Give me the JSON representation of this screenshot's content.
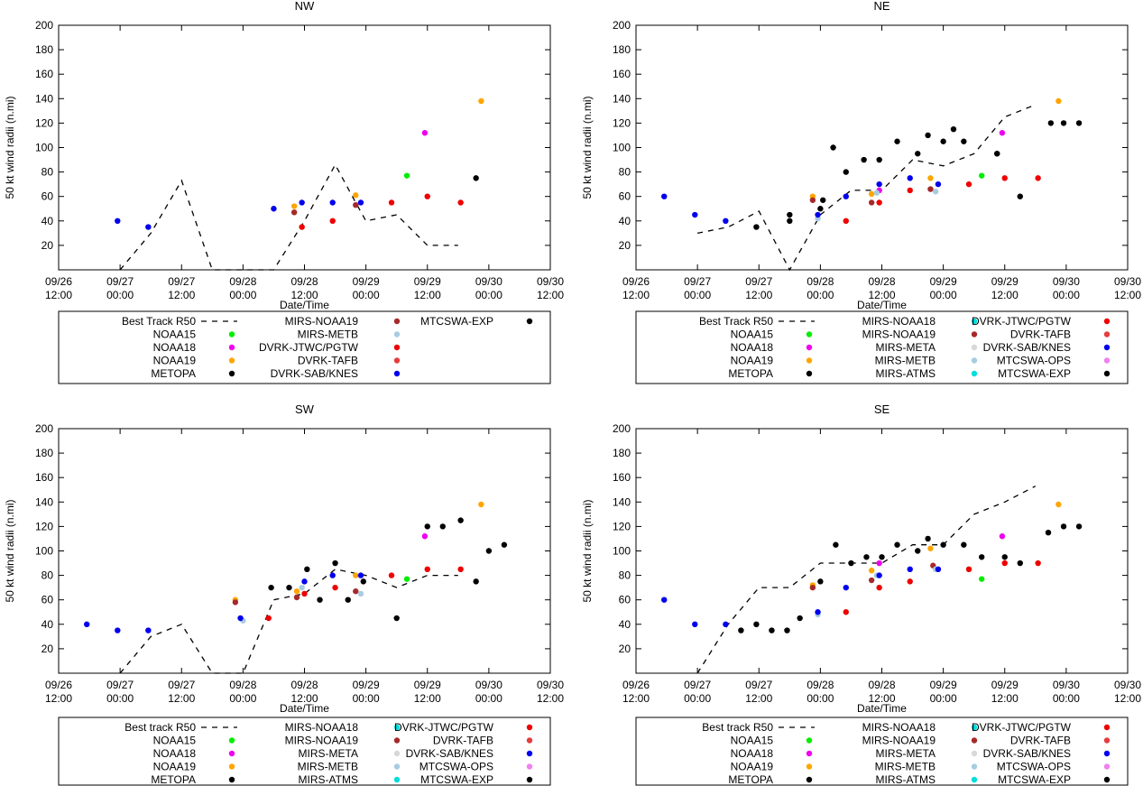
{
  "colors": {
    "black": "#000000",
    "NOAA15": "#00ee00",
    "NOAA18": "#ee00ee",
    "NOAA19": "#ffa500",
    "METOPA": "#000000",
    "MIRS-NOAA18": "#00dddd",
    "MIRS-NOAA19": "#a52a2a",
    "MIRS-META": "#d8d8d8",
    "MIRS-METB": "#a8cce0",
    "MIRS-ATMS": "#00dddd",
    "DVRK-JTWC/PGTW": "#ee0000",
    "DVRK-TAFB": "#e53c3c",
    "DVRK-SAB/KNES": "#0000ee",
    "MTCSWA-OPS": "#ee82ee",
    "MTCSWA-EXP": "#000000"
  },
  "chart_data": [
    {
      "id": "nw",
      "type": "scatter",
      "title": "NW",
      "xlabel": "Date/Time",
      "ylabel": "50 kt wind radii (n.mi)",
      "xlim": [
        0,
        96
      ],
      "ylim": [
        0,
        200
      ],
      "yticks": [
        20,
        40,
        60,
        80,
        100,
        120,
        140,
        160,
        180,
        200
      ],
      "xticks": [
        {
          "x": 0,
          "l1": "09/26",
          "l2": "12:00"
        },
        {
          "x": 12,
          "l1": "09/27",
          "l2": "00:00"
        },
        {
          "x": 24,
          "l1": "09/27",
          "l2": "12:00"
        },
        {
          "x": 36,
          "l1": "09/28",
          "l2": "00:00"
        },
        {
          "x": 48,
          "l1": "09/28",
          "l2": "12:00"
        },
        {
          "x": 60,
          "l1": "09/29",
          "l2": "00:00"
        },
        {
          "x": 72,
          "l1": "09/29",
          "l2": "12:00"
        },
        {
          "x": 84,
          "l1": "09/30",
          "l2": "00:00"
        },
        {
          "x": 96,
          "l1": "09/30",
          "l2": "12:00"
        }
      ],
      "best_track": {
        "name": "Best Track R50",
        "x": [
          12,
          18,
          24,
          30,
          36,
          42,
          48,
          54,
          58,
          60,
          66,
          72,
          78
        ],
        "y": [
          0,
          30,
          73,
          0,
          0,
          0,
          40,
          86,
          55,
          40,
          45,
          20,
          20
        ]
      },
      "series": [
        {
          "name": "NOAA15",
          "x": [
            68
          ],
          "y": [
            77
          ]
        },
        {
          "name": "NOAA18",
          "x": [
            71.5
          ],
          "y": [
            112
          ]
        },
        {
          "name": "NOAA19",
          "x": [
            46,
            58,
            82.5
          ],
          "y": [
            52,
            61,
            138
          ]
        },
        {
          "name": "METOPA",
          "x": [],
          "y": []
        },
        {
          "name": "MIRS-NOAA19",
          "x": [
            46,
            58
          ],
          "y": [
            47,
            53
          ]
        },
        {
          "name": "MIRS-METB",
          "x": [],
          "y": []
        },
        {
          "name": "DVRK-JTWC/PGTW",
          "x": [
            47.5,
            53.5,
            65,
            72,
            78.5
          ],
          "y": [
            35,
            40,
            55,
            60,
            55
          ]
        },
        {
          "name": "DVRK-TAFB",
          "x": [],
          "y": []
        },
        {
          "name": "DVRK-SAB/KNES",
          "x": [
            11.5,
            17.5,
            42,
            47.5,
            53.5,
            59
          ],
          "y": [
            40,
            35,
            50,
            55,
            55,
            55
          ]
        },
        {
          "name": "MTCSWA-EXP",
          "x": [
            81.5
          ],
          "y": [
            75
          ]
        }
      ],
      "legend": {
        "best_track_label": "Best Track R50",
        "columns": [
          [
            "Best Track R50",
            "NOAA15",
            "NOAA18",
            "NOAA19",
            "METOPA"
          ],
          [
            "MIRS-NOAA19",
            "MIRS-METB",
            "DVRK-JTWC/PGTW",
            "DVRK-TAFB",
            "DVRK-SAB/KNES"
          ],
          [
            "MTCSWA-EXP"
          ]
        ]
      }
    },
    {
      "id": "ne",
      "type": "scatter",
      "title": "NE",
      "xlabel": "Date/Time",
      "ylabel": "50 kt wind radii (n.mi)",
      "xlim": [
        0,
        96
      ],
      "ylim": [
        0,
        200
      ],
      "yticks": [
        20,
        40,
        60,
        80,
        100,
        120,
        140,
        160,
        180,
        200
      ],
      "xticks": [
        {
          "x": 0,
          "l1": "09/26",
          "l2": "12:00"
        },
        {
          "x": 12,
          "l1": "09/27",
          "l2": "00:00"
        },
        {
          "x": 24,
          "l1": "09/27",
          "l2": "12:00"
        },
        {
          "x": 36,
          "l1": "09/28",
          "l2": "00:00"
        },
        {
          "x": 48,
          "l1": "09/28",
          "l2": "12:00"
        },
        {
          "x": 60,
          "l1": "09/29",
          "l2": "00:00"
        },
        {
          "x": 72,
          "l1": "09/29",
          "l2": "12:00"
        },
        {
          "x": 84,
          "l1": "09/30",
          "l2": "00:00"
        },
        {
          "x": 96,
          "l1": "09/30",
          "l2": "12:00"
        }
      ],
      "best_track": {
        "name": "Best Track R50",
        "x": [
          12,
          18,
          24,
          30,
          36,
          42,
          48,
          54,
          60,
          66,
          72,
          78
        ],
        "y": [
          30,
          35,
          48,
          0,
          45,
          65,
          65,
          90,
          85,
          95,
          125,
          135
        ]
      },
      "series": [
        {
          "name": "NOAA15",
          "x": [
            67.5
          ],
          "y": [
            77
          ]
        },
        {
          "name": "NOAA18",
          "x": [
            47.5,
            71.5
          ],
          "y": [
            65,
            112
          ]
        },
        {
          "name": "NOAA19",
          "x": [
            34.5,
            46,
            57.5,
            82.5
          ],
          "y": [
            60,
            62,
            75,
            138
          ]
        },
        {
          "name": "METOPA",
          "x": [
            23.5,
            30,
            36.5,
            38.5,
            41,
            44.5,
            47.5,
            51,
            55,
            57,
            60,
            62,
            64,
            70.5,
            75,
            81,
            83.5,
            86.5
          ],
          "y": [
            35,
            40,
            57,
            100,
            80,
            90,
            90,
            105,
            95,
            110,
            105,
            115,
            105,
            95,
            60,
            120,
            120,
            120
          ]
        },
        {
          "name": "MIRS-NOAA18",
          "x": [],
          "y": []
        },
        {
          "name": "MIRS-NOAA19",
          "x": [
            34.5,
            46,
            57.5
          ],
          "y": [
            57,
            55,
            66
          ]
        },
        {
          "name": "MIRS-META",
          "x": [],
          "y": []
        },
        {
          "name": "MIRS-METB",
          "x": [
            35.5,
            47,
            58.5
          ],
          "y": [
            42,
            63,
            64
          ]
        },
        {
          "name": "MIRS-ATMS",
          "x": [],
          "y": []
        },
        {
          "name": "DVRK-JTWC/PGTW",
          "x": [
            41,
            47.5,
            53.5,
            65,
            72,
            78.5
          ],
          "y": [
            40,
            55,
            65,
            70,
            75,
            75
          ]
        },
        {
          "name": "DVRK-TAFB",
          "x": [],
          "y": []
        },
        {
          "name": "DVRK-SAB/KNES",
          "x": [
            5.5,
            11.5,
            17.5,
            35.5,
            41,
            47.5,
            53.5,
            59
          ],
          "y": [
            60,
            45,
            40,
            45,
            60,
            70,
            75,
            70
          ]
        },
        {
          "name": "MTCSWA-OPS",
          "x": [],
          "y": []
        },
        {
          "name": "MTCSWA-EXP",
          "x": [
            30,
            36,
            70.5
          ],
          "y": [
            45,
            50,
            95
          ]
        }
      ],
      "legend": {
        "columns": [
          [
            "Best Track R50",
            "NOAA15",
            "NOAA18",
            "NOAA19",
            "METOPA"
          ],
          [
            "MIRS-NOAA18",
            "MIRS-NOAA19",
            "MIRS-META",
            "MIRS-METB",
            "MIRS-ATMS"
          ],
          [
            "DVRK-JTWC/PGTW",
            "DVRK-TAFB",
            "DVRK-SAB/KNES",
            "MTCSWA-OPS",
            "MTCSWA-EXP"
          ]
        ]
      }
    },
    {
      "id": "sw",
      "type": "scatter",
      "title": "SW",
      "xlabel": "Date/Time",
      "ylabel": "50 kt wind radii (n.mi)",
      "xlim": [
        0,
        96
      ],
      "ylim": [
        0,
        200
      ],
      "yticks": [
        20,
        40,
        60,
        80,
        100,
        120,
        140,
        160,
        180,
        200
      ],
      "xticks": [
        {
          "x": 0,
          "l1": "09/26",
          "l2": "12:00"
        },
        {
          "x": 12,
          "l1": "09/27",
          "l2": "00:00"
        },
        {
          "x": 24,
          "l1": "09/27",
          "l2": "12:00"
        },
        {
          "x": 36,
          "l1": "09/28",
          "l2": "00:00"
        },
        {
          "x": 48,
          "l1": "09/28",
          "l2": "12:00"
        },
        {
          "x": 60,
          "l1": "09/29",
          "l2": "00:00"
        },
        {
          "x": 72,
          "l1": "09/29",
          "l2": "12:00"
        },
        {
          "x": 84,
          "l1": "09/30",
          "l2": "00:00"
        },
        {
          "x": 96,
          "l1": "09/30",
          "l2": "12:00"
        }
      ],
      "best_track": {
        "name": "Best track R50",
        "x": [
          12,
          18,
          24,
          30,
          36,
          42,
          48,
          54,
          60,
          66,
          72,
          78
        ],
        "y": [
          0,
          30,
          40,
          0,
          0,
          60,
          65,
          85,
          80,
          70,
          80,
          80
        ]
      },
      "series": [
        {
          "name": "NOAA15",
          "x": [
            68
          ],
          "y": [
            77
          ]
        },
        {
          "name": "NOAA18",
          "x": [
            71.5
          ],
          "y": [
            112
          ]
        },
        {
          "name": "NOAA19",
          "x": [
            34.5,
            46.5,
            58,
            82.5
          ],
          "y": [
            60,
            67,
            80,
            138
          ]
        },
        {
          "name": "METOPA",
          "x": [
            41.5,
            45,
            48.5,
            51,
            54,
            56.5,
            59.5,
            66,
            72,
            75,
            78.5,
            81.5,
            84,
            87
          ],
          "y": [
            70,
            70,
            85,
            60,
            90,
            60,
            75,
            45,
            120,
            120,
            125,
            75,
            100,
            105
          ]
        },
        {
          "name": "MIRS-NOAA18",
          "x": [],
          "y": []
        },
        {
          "name": "MIRS-NOAA19",
          "x": [
            34.5,
            46.5,
            58
          ],
          "y": [
            58,
            62,
            67
          ]
        },
        {
          "name": "MIRS-META",
          "x": [],
          "y": []
        },
        {
          "name": "MIRS-METB",
          "x": [
            36,
            47.5,
            59
          ],
          "y": [
            43,
            70,
            65
          ]
        },
        {
          "name": "MIRS-ATMS",
          "x": [],
          "y": []
        },
        {
          "name": "DVRK-JTWC/PGTW",
          "x": [
            41,
            48,
            54,
            65,
            72,
            78.5
          ],
          "y": [
            45,
            65,
            70,
            80,
            85,
            85
          ]
        },
        {
          "name": "DVRK-TAFB",
          "x": [],
          "y": []
        },
        {
          "name": "DVRK-SAB/KNES",
          "x": [
            5.5,
            11.5,
            17.5,
            35.5,
            48,
            53.5,
            59
          ],
          "y": [
            40,
            35,
            35,
            45,
            75,
            80,
            80
          ]
        },
        {
          "name": "MTCSWA-OPS",
          "x": [],
          "y": []
        },
        {
          "name": "MTCSWA-EXP",
          "x": [],
          "y": []
        }
      ],
      "legend": {
        "columns": [
          [
            "Best track R50",
            "NOAA15",
            "NOAA18",
            "NOAA19",
            "METOPA"
          ],
          [
            "MIRS-NOAA18",
            "MIRS-NOAA19",
            "MIRS-META",
            "MIRS-METB",
            "MIRS-ATMS"
          ],
          [
            "DVRK-JTWC/PGTW",
            "DVRK-TAFB",
            "DVRK-SAB/KNES",
            "MTCSWA-OPS",
            "MTCSWA-EXP"
          ]
        ]
      }
    },
    {
      "id": "se",
      "type": "scatter",
      "title": "SE",
      "xlabel": "Date/Time",
      "ylabel": "50 kt wind radii (n.mi)",
      "xlim": [
        0,
        96
      ],
      "ylim": [
        0,
        200
      ],
      "yticks": [
        20,
        40,
        60,
        80,
        100,
        120,
        140,
        160,
        180,
        200
      ],
      "xticks": [
        {
          "x": 0,
          "l1": "09/26",
          "l2": "12:00"
        },
        {
          "x": 12,
          "l1": "09/27",
          "l2": "00:00"
        },
        {
          "x": 24,
          "l1": "09/27",
          "l2": "12:00"
        },
        {
          "x": 36,
          "l1": "09/28",
          "l2": "00:00"
        },
        {
          "x": 48,
          "l1": "09/28",
          "l2": "12:00"
        },
        {
          "x": 60,
          "l1": "09/29",
          "l2": "00:00"
        },
        {
          "x": 72,
          "l1": "09/29",
          "l2": "12:00"
        },
        {
          "x": 84,
          "l1": "09/30",
          "l2": "00:00"
        },
        {
          "x": 96,
          "l1": "09/30",
          "l2": "12:00"
        }
      ],
      "best_track": {
        "name": "Best track R50",
        "x": [
          12,
          18,
          24,
          30,
          36,
          42,
          48,
          54,
          60,
          66,
          72,
          78
        ],
        "y": [
          0,
          40,
          70,
          70,
          90,
          90,
          90,
          105,
          105,
          130,
          140,
          153
        ]
      },
      "series": [
        {
          "name": "NOAA15",
          "x": [
            67.5
          ],
          "y": [
            77
          ]
        },
        {
          "name": "NOAA18",
          "x": [
            47.5,
            71.5
          ],
          "y": [
            90,
            112
          ]
        },
        {
          "name": "NOAA19",
          "x": [
            34.5,
            46,
            57.5,
            82.5
          ],
          "y": [
            72,
            84,
            102,
            138
          ]
        },
        {
          "name": "METOPA",
          "x": [
            20.5,
            23.5,
            26.5,
            29.5,
            32,
            36,
            39,
            42,
            45,
            48,
            51,
            55,
            57,
            60,
            64,
            67.5,
            72,
            75,
            80.5,
            83.5,
            86.5
          ],
          "y": [
            35,
            40,
            35,
            35,
            45,
            75,
            105,
            90,
            95,
            95,
            105,
            100,
            110,
            105,
            105,
            95,
            95,
            90,
            115,
            120,
            120
          ]
        },
        {
          "name": "MIRS-NOAA18",
          "x": [],
          "y": []
        },
        {
          "name": "MIRS-NOAA19",
          "x": [
            34.5,
            46,
            58
          ],
          "y": [
            70,
            76,
            88
          ]
        },
        {
          "name": "MIRS-META",
          "x": [],
          "y": []
        },
        {
          "name": "MIRS-METB",
          "x": [
            35.5,
            47,
            58.5
          ],
          "y": [
            48,
            80,
            85
          ]
        },
        {
          "name": "MIRS-ATMS",
          "x": [],
          "y": []
        },
        {
          "name": "DVRK-JTWC/PGTW",
          "x": [
            41,
            47.5,
            53.5,
            65,
            72,
            78.5
          ],
          "y": [
            50,
            70,
            75,
            85,
            90,
            90
          ]
        },
        {
          "name": "DVRK-TAFB",
          "x": [],
          "y": []
        },
        {
          "name": "DVRK-SAB/KNES",
          "x": [
            5.5,
            11.5,
            17.5,
            35.5,
            41,
            47.5,
            53.5,
            59
          ],
          "y": [
            60,
            40,
            40,
            50,
            70,
            80,
            85,
            85
          ]
        },
        {
          "name": "MTCSWA-OPS",
          "x": [],
          "y": []
        },
        {
          "name": "MTCSWA-EXP",
          "x": [],
          "y": []
        }
      ],
      "legend": {
        "columns": [
          [
            "Best track R50",
            "NOAA15",
            "NOAA18",
            "NOAA19",
            "METOPA"
          ],
          [
            "MIRS-NOAA18",
            "MIRS-NOAA19",
            "MIRS-META",
            "MIRS-METB",
            "MIRS-ATMS"
          ],
          [
            "DVRK-JTWC/PGTW",
            "DVRK-TAFB",
            "DVRK-SAB/KNES",
            "MTCSWA-OPS",
            "MTCSWA-EXP"
          ]
        ]
      }
    }
  ]
}
